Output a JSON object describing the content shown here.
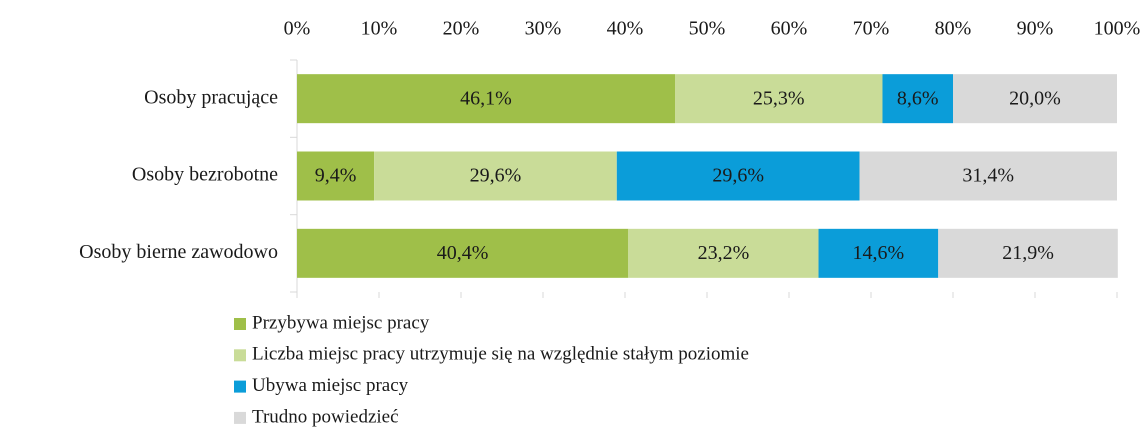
{
  "chart_data": {
    "type": "stacked-bar-horizontal",
    "categories": [
      "Osoby pracujące",
      "Osoby bezrobotne",
      "Osoby bierne zawodowo"
    ],
    "series": [
      {
        "name": "Przybywa miejsc pracy",
        "color": "#9fbf49",
        "values": [
          46.1,
          9.4,
          40.4
        ],
        "value_labels": [
          "46,1%",
          "9,4%",
          "40,4%"
        ]
      },
      {
        "name": "Liczba miejsc pracy utrzymuje się na względnie stałym poziomie",
        "color": "#c9dc98",
        "values": [
          25.3,
          29.6,
          23.2
        ],
        "value_labels": [
          "25,3%",
          "29,6%",
          "23,2%"
        ]
      },
      {
        "name": "Ubywa miejsc pracy",
        "color": "#0b9dd9",
        "values": [
          8.6,
          29.6,
          14.6
        ],
        "value_labels": [
          "8,6%",
          "29,6%",
          "14,6%"
        ]
      },
      {
        "name": "Trudno powiedzieć",
        "color": "#d9d9d9",
        "values": [
          20.0,
          31.4,
          21.9
        ],
        "value_labels": [
          "20,0%",
          "31,4%",
          "21,9%"
        ]
      }
    ],
    "xlim": [
      0,
      100
    ],
    "xticks": [
      {
        "value": 0,
        "label": "0%"
      },
      {
        "value": 10,
        "label": "10%"
      },
      {
        "value": 20,
        "label": "20%"
      },
      {
        "value": 30,
        "label": "30%"
      },
      {
        "value": 40,
        "label": "40%"
      },
      {
        "value": 50,
        "label": "50%"
      },
      {
        "value": 60,
        "label": "60%"
      },
      {
        "value": 70,
        "label": "70%"
      },
      {
        "value": 80,
        "label": "80%"
      },
      {
        "value": 90,
        "label": "90%"
      },
      {
        "value": 100,
        "label": "100%"
      }
    ],
    "legend": "bottom"
  }
}
